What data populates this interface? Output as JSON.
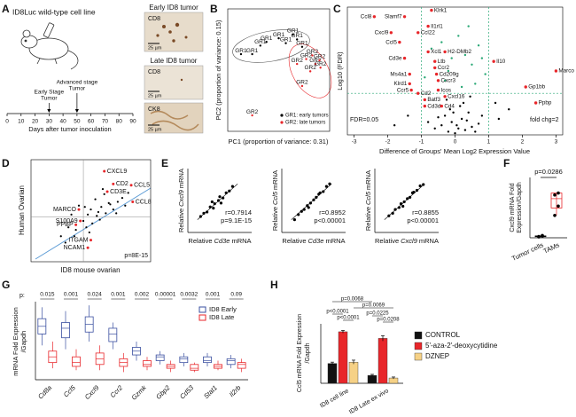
{
  "A": {
    "letter": "A",
    "cell_line": "ID8Luc wild-type cell line",
    "timeline": {
      "xlim": [
        0,
        90
      ],
      "xticks": [
        0,
        10,
        20,
        30,
        40,
        50,
        60,
        70,
        80,
        90
      ],
      "xlabel": "Days after tumor inoculation",
      "events": [
        {
          "label": [
            "Early Stage",
            "Tumor"
          ],
          "day": 30
        },
        {
          "label": [
            "Advanced stage",
            "Tumor"
          ],
          "day": 50
        }
      ]
    },
    "images": [
      {
        "title": "Early ID8 tumor",
        "stain": "CD8",
        "scale": "25 µm"
      },
      {
        "title": "Late ID8 tumor",
        "stain": "CD8",
        "scale": "25 µm"
      },
      {
        "stain": "CK8",
        "scale": "25 µm"
      }
    ]
  },
  "B": {
    "letter": "B",
    "type": "scatter",
    "xlabel": "PC1 (proportion of variance: 0.31)",
    "ylabel": "PC2 (proportion of variance: 0.15)",
    "xlim": [
      0,
      100
    ],
    "ylim": [
      0,
      100
    ],
    "series": [
      {
        "name": "GR1: early tumors",
        "label": "GR1",
        "color": "#000000",
        "x": [
          13,
          24,
          32,
          38,
          50,
          57,
          64,
          68,
          73
        ],
        "y": [
          63,
          63,
          70,
          73,
          76,
          72,
          79,
          75,
          69
        ]
      },
      {
        "name": "GR2: late tumors",
        "label": "GR2",
        "color": "#e8262a",
        "x": [
          68,
          77,
          83,
          86,
          90,
          91,
          81,
          73,
          24
        ],
        "y": [
          55,
          59,
          62,
          55,
          58,
          52,
          49,
          37,
          13
        ]
      }
    ]
  },
  "C": {
    "letter": "C",
    "type": "scatter",
    "xlabel": "Difference of Groups' Mean Log2 Expression Value",
    "ylabel": "Log10 (FDR)",
    "xlim": [
      -3.2,
      3.2
    ],
    "ylim": [
      0,
      4
    ],
    "xticks": [
      -3,
      -2,
      -1,
      0,
      1,
      2,
      3
    ],
    "fdr": {
      "label": "FDR=0.05",
      "value": 1.3
    },
    "fold_lines": [
      -1,
      1
    ],
    "fold_label": "fold chg=2",
    "guide_color": "#2aa876",
    "genes": {
      "color": "#e8262a",
      "names": [
        "Ccl8",
        "Slamf7",
        "Klrk1",
        "Il1rl1",
        "Cxcl9",
        "Ccl22",
        "Ccl5",
        "Xcl1",
        "H2-DMb2",
        "Cd3e",
        "Ltb",
        "Ccr2",
        "Ms4a1",
        "Cd209g",
        "Cxcr3",
        "Klrd1",
        "Icos",
        "Ccr5",
        "Cd2",
        "Cxcl16",
        "Batf3",
        "Cd3d",
        "Cd4",
        "Il10",
        "Marco",
        "Gp1bb",
        "Ppbp"
      ],
      "x": [
        -2.4,
        -1.5,
        -0.7,
        -0.8,
        -1.9,
        -1.1,
        -1.65,
        -0.8,
        -0.3,
        -1.5,
        -0.6,
        -0.6,
        -1.35,
        -0.55,
        -0.5,
        -1.35,
        -0.5,
        -1.3,
        -1.1,
        -0.3,
        -0.9,
        -0.9,
        -0.4,
        1.15,
        3.0,
        2.1,
        2.4
      ],
      "y": [
        3.7,
        3.7,
        3.9,
        3.4,
        3.2,
        3.2,
        2.9,
        2.6,
        2.6,
        2.4,
        2.3,
        2.1,
        1.9,
        1.9,
        1.7,
        1.6,
        1.4,
        1.4,
        1.3,
        1.2,
        1.1,
        0.9,
        0.9,
        2.3,
        2.0,
        1.5,
        1.0
      ],
      "label_colors": [
        "#000000",
        "#000000",
        "#000000",
        "#000000",
        "#2b6fd6",
        "#000000",
        "#2b6fd6",
        "#000000",
        "#000000",
        "#2b6fd6",
        "#000000",
        "#000000",
        "#000000",
        "#000000",
        "#2b6fd6",
        "#000000",
        "#000000",
        "#000000",
        "#000000",
        "#000000",
        "#000000",
        "#000000",
        "#000000",
        "#000000",
        "#000000",
        "#000000",
        "#000000"
      ]
    },
    "points": {
      "color": "#000000",
      "x": [
        -0.2,
        0.1,
        0.3,
        -0.4,
        0.5,
        -0.1,
        0.2,
        0.0,
        -0.3,
        0.4,
        0.6,
        -0.6,
        0.15,
        -0.15,
        0.25,
        0.7,
        -0.5,
        0.05,
        0.35,
        -0.25,
        0.8,
        -0.8,
        0.45,
        -0.05,
        1.3,
        1.6,
        1.2,
        -1.4,
        -1.8
      ],
      "y": [
        0.1,
        0.2,
        0.15,
        0.3,
        0.25,
        0.4,
        0.5,
        0.05,
        0.6,
        0.7,
        0.1,
        0.2,
        0.9,
        0.8,
        1.0,
        0.35,
        0.55,
        0.3,
        0.45,
        1.1,
        0.6,
        0.4,
        1.2,
        0.7,
        0.5,
        0.8,
        1.0,
        0.6,
        0.3
      ]
    },
    "sig_points": {
      "color": "#2aa876",
      "x": [
        -0.9,
        -0.2,
        0.3,
        0.6,
        -0.4,
        0.1,
        0.5,
        -0.7,
        0.2,
        0.7,
        -0.1,
        0.4,
        0.9,
        -0.3,
        0.8
      ],
      "y": [
        1.8,
        2.0,
        2.5,
        1.6,
        2.9,
        3.1,
        2.2,
        2.7,
        1.5,
        2.8,
        2.4,
        3.4,
        1.9,
        1.7,
        2.4
      ]
    }
  },
  "D": {
    "letter": "D",
    "type": "scatter",
    "xlabel": "ID8 mouse ovarian",
    "ylabel": "Human Ovarian",
    "annotation": "p=8E-15",
    "xlim": [
      -3.5,
      4.5
    ],
    "ylim": [
      -3.5,
      4.5
    ],
    "genes": {
      "color": "#e8262a",
      "names": [
        "CXCL9",
        "CD2",
        "CCL5",
        "CD3E",
        "CCL8",
        "MARCO",
        "S100A9",
        "PPBP",
        "ITGAM",
        "NCAM1"
      ],
      "x": [
        1.4,
        2.0,
        3.2,
        1.6,
        3.3,
        -0.3,
        -0.2,
        -0.5,
        0.5,
        0.3
      ],
      "y": [
        3.6,
        2.6,
        2.5,
        2.0,
        1.2,
        0.6,
        -0.3,
        -0.6,
        -1.8,
        -2.4
      ]
    },
    "points": {
      "color": "#000000",
      "x": [
        -1.5,
        -1,
        -0.5,
        0,
        0.3,
        0.6,
        1,
        1.2,
        1.5,
        1.8,
        2,
        2.3,
        2.6,
        -0.8,
        0.2,
        0.8,
        1.1,
        -0.3,
        0.5,
        1.4,
        2.2,
        -1.2,
        0.1,
        0.9,
        1.7,
        3,
        0.4,
        -0.6,
        1.3,
        2.8
      ],
      "y": [
        -1.5,
        -0.8,
        -1,
        -0.3,
        0.2,
        -0.5,
        0.4,
        0.8,
        0.3,
        1,
        0.6,
        1.2,
        1.5,
        0.2,
        -0.8,
        1.4,
        -0.2,
        0.9,
        0.6,
        1.8,
        0.3,
        -2,
        0.8,
        0.1,
        1.1,
        1.9,
        -1.2,
        -1.5,
        2.2,
        0.9
      ]
    }
  },
  "E": {
    "letter": "E",
    "type": "scatter",
    "xlim": [
      0,
      10
    ],
    "ylim": [
      0,
      10
    ],
    "plots": [
      {
        "ylabel": [
          "Relative",
          "Cxcl9",
          "mRNA"
        ],
        "xlabel": [
          "Relative",
          "Cd3e",
          "mRNA"
        ],
        "r": "r=0.7914",
        "p": "p=9.1E-15",
        "x": [
          2,
          2.5,
          3,
          3.5,
          4,
          4.2,
          4.8,
          5,
          5.5,
          6,
          6.5,
          7,
          3.8,
          5.2
        ],
        "y": [
          2.5,
          3,
          3.2,
          4,
          3.8,
          4.5,
          5,
          5.6,
          5.4,
          6.2,
          6.5,
          7.2,
          4.8,
          4.6
        ]
      },
      {
        "ylabel": [
          "Relative",
          "Ccl5",
          "mRNA"
        ],
        "xlabel": [
          "Relative",
          "Cd3e",
          "mRNA"
        ],
        "r": "r=0.8952",
        "p": "p<0.00001",
        "x": [
          2,
          2.6,
          3.1,
          3.5,
          4,
          4.5,
          5,
          5.4,
          6,
          6.5,
          7,
          7.5,
          4.2,
          5.8
        ],
        "y": [
          2,
          2.8,
          3.3,
          3.6,
          4.2,
          4.6,
          5.1,
          5.5,
          6.2,
          6.4,
          7.2,
          7.6,
          3.9,
          6.0
        ]
      },
      {
        "ylabel": [
          "Relative",
          "Ccl5",
          "mRNA"
        ],
        "xlabel": [
          "Relative",
          "Cxcl9",
          "mRNA"
        ],
        "r": "r=0.8855",
        "p": "p<0.00001",
        "x": [
          2.2,
          2.8,
          3.2,
          3.8,
          4.1,
          4.6,
          5.1,
          5.5,
          6.1,
          6.6,
          7.1,
          7.6,
          4.4,
          5.9
        ],
        "y": [
          2.6,
          3.0,
          3.6,
          3.9,
          4.5,
          4.8,
          5.3,
          5.5,
          6.3,
          6.6,
          7.3,
          7.5,
          4.1,
          6.2
        ]
      }
    ]
  },
  "F": {
    "letter": "F",
    "type": "box",
    "ylabel": [
      "Cxcl9 mRNA Fold",
      "Expression/Gapdh"
    ],
    "annotation": "p=0.0286",
    "ylim": [
      0,
      30
    ],
    "categories": [
      "Tumor cells",
      "TAMs"
    ],
    "colors": [
      "#000000",
      "#e8262a"
    ],
    "boxes": [
      {
        "min": 0.5,
        "q1": 0.6,
        "median": 0.8,
        "q3": 1.0,
        "max": 1.2
      },
      {
        "min": 12,
        "q1": 16,
        "median": 21,
        "q3": 24,
        "max": 24
      }
    ],
    "points": [
      [
        0.5,
        0.9,
        0.7,
        1.2
      ],
      [
        12,
        17,
        23,
        24
      ]
    ]
  },
  "G": {
    "letter": "G",
    "type": "box",
    "ylabel": [
      "mRNA Fold  Expression",
      "/Gapdh"
    ],
    "ylim": [
      0,
      40
    ],
    "categories": [
      "Cd8a",
      "Ccl5",
      "Cxcl9",
      "Ccr2",
      "Gzmk",
      "Gbp2",
      "Cd53",
      "Stat1",
      "Il2rb"
    ],
    "p_prefix": "p:",
    "p_values": [
      "0.015",
      "0.001",
      "0.024",
      "0.001",
      "0.002",
      "0.00001",
      "0.0032",
      "0.001",
      "0.09"
    ],
    "series": [
      {
        "name": "ID8 Early",
        "color": "#3a4fa0",
        "boxes": [
          {
            "min": 18,
            "q1": 24,
            "median": 28,
            "q3": 32,
            "max": 38
          },
          {
            "min": 16,
            "q1": 22,
            "median": 27,
            "q3": 30,
            "max": 36
          },
          {
            "min": 20,
            "q1": 25,
            "median": 29,
            "q3": 33,
            "max": 39
          },
          {
            "min": 16,
            "q1": 20,
            "median": 24,
            "q3": 27,
            "max": 30
          },
          {
            "min": 10,
            "q1": 13,
            "median": 15,
            "q3": 17,
            "max": 20
          },
          {
            "min": 8,
            "q1": 10,
            "median": 12,
            "q3": 13,
            "max": 15
          },
          {
            "min": 7,
            "q1": 9,
            "median": 11,
            "q3": 12,
            "max": 14
          },
          {
            "min": 7,
            "q1": 9,
            "median": 10,
            "q3": 12,
            "max": 14
          },
          {
            "min": 6,
            "q1": 8,
            "median": 10,
            "q3": 11,
            "max": 13
          }
        ]
      },
      {
        "name": "ID8 Late",
        "color": "#e8262a",
        "boxes": [
          {
            "min": 6,
            "q1": 9,
            "median": 12,
            "q3": 15,
            "max": 20
          },
          {
            "min": 5,
            "q1": 7,
            "median": 9,
            "q3": 12,
            "max": 16
          },
          {
            "min": 5,
            "q1": 8,
            "median": 11,
            "q3": 14,
            "max": 18
          },
          {
            "min": 4,
            "q1": 7,
            "median": 9,
            "q3": 11,
            "max": 14
          },
          {
            "min": 5,
            "q1": 7,
            "median": 8,
            "q3": 10,
            "max": 12
          },
          {
            "min": 4,
            "q1": 6,
            "median": 7,
            "q3": 8,
            "max": 10
          },
          {
            "min": 4,
            "q1": 5,
            "median": 6,
            "q3": 8,
            "max": 9
          },
          {
            "min": 5,
            "q1": 6,
            "median": 7,
            "q3": 8,
            "max": 10
          },
          {
            "min": 4,
            "q1": 6,
            "median": 8,
            "q3": 9,
            "max": 11
          }
        ]
      }
    ]
  },
  "H": {
    "letter": "H",
    "type": "bar",
    "ylabel": [
      "Ccl5 mRNA Fold Expression",
      "/Gapdh"
    ],
    "ylim": [
      0,
      90
    ],
    "categories": [
      "ID8 cell line",
      "ID8 Late ex vivo"
    ],
    "series": [
      {
        "name": "CONTROL",
        "color": "#111111",
        "values": [
          30,
          12
        ],
        "errors": [
          2,
          1.5
        ]
      },
      {
        "name": "5'-aza-2'-deoxycytidine",
        "color": "#e8262a",
        "values": [
          78,
          68
        ],
        "errors": [
          2,
          4
        ]
      },
      {
        "name": "DZNEP",
        "color": "#f6d186",
        "values": [
          32,
          8
        ],
        "errors": [
          3,
          1.5
        ]
      }
    ],
    "annotations": [
      "p=0.0068",
      "p=0.0069",
      "p<0.0001",
      "p<0.0001",
      "p=0.0225",
      "p=0.0208"
    ]
  }
}
